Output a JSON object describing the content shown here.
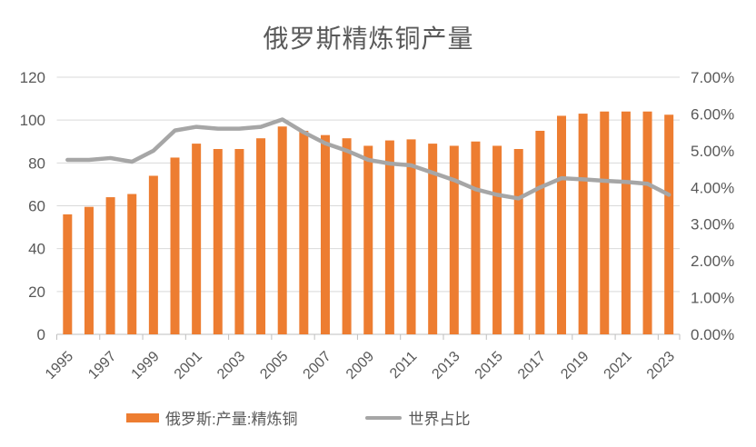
{
  "title": "俄罗斯精炼铜产量",
  "legend": {
    "bar_label": "俄罗斯:产量:精炼铜",
    "line_label": "世界占比"
  },
  "colors": {
    "bar": "#ED7D31",
    "line": "#A6A6A6",
    "grid": "#D9D9D9",
    "axis_line": "#BFBFBF",
    "text": "#595959"
  },
  "chart_data": {
    "type": "bar+line",
    "title": "俄罗斯精炼铜产量",
    "categories": [
      "1995",
      "1996",
      "1997",
      "1998",
      "1999",
      "2000",
      "2001",
      "2002",
      "2003",
      "2004",
      "2005",
      "2006",
      "2007",
      "2008",
      "2009",
      "2010",
      "2011",
      "2012",
      "2013",
      "2014",
      "2015",
      "2016",
      "2017",
      "2018",
      "2019",
      "2020",
      "2021",
      "2022",
      "2023"
    ],
    "series": [
      {
        "name": "俄罗斯:产量:精炼铜",
        "type": "bar",
        "axis": "left",
        "values": [
          56,
          59.5,
          64,
          65.5,
          74,
          82.5,
          89,
          86.5,
          86.5,
          91.5,
          97,
          95,
          93,
          91.5,
          88,
          90.5,
          91,
          89,
          88,
          90,
          88,
          86.5,
          95,
          102,
          103,
          104,
          104,
          104,
          102.5
        ]
      },
      {
        "name": "世界占比",
        "type": "line",
        "axis": "right",
        "unit": "%",
        "values_percent": [
          4.75,
          4.75,
          4.8,
          4.7,
          5.0,
          5.55,
          5.65,
          5.6,
          5.6,
          5.65,
          5.85,
          5.5,
          5.2,
          5.0,
          4.75,
          4.65,
          4.6,
          4.4,
          4.2,
          3.95,
          3.8,
          3.7,
          4.0,
          4.25,
          4.22,
          4.18,
          4.15,
          4.1,
          3.8
        ]
      }
    ],
    "y_axis_left": {
      "min": 0,
      "max": 120,
      "step": 20,
      "tick_labels": [
        "0",
        "20",
        "40",
        "60",
        "80",
        "100",
        "120"
      ]
    },
    "y_axis_right": {
      "min": 0,
      "max": 7,
      "step": 1,
      "tick_labels": [
        "0.00%",
        "1.00%",
        "2.00%",
        "3.00%",
        "4.00%",
        "5.00%",
        "6.00%",
        "7.00%"
      ]
    },
    "x_tick_labels": [
      "1995",
      "1997",
      "1999",
      "2001",
      "2003",
      "2005",
      "2007",
      "2009",
      "2011",
      "2013",
      "2015",
      "2017",
      "2019",
      "2021",
      "2023"
    ],
    "legend_position": "bottom",
    "grid": true
  }
}
